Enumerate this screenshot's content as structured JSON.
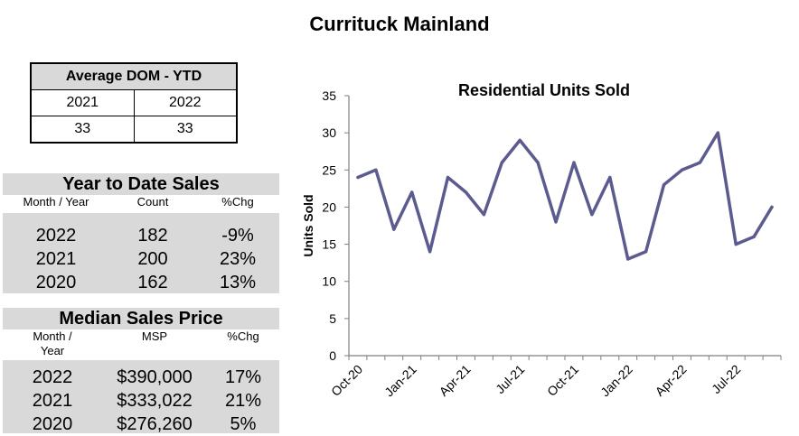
{
  "page_title": "Currituck Mainland",
  "dom_table": {
    "title": "Average DOM - YTD",
    "years": [
      "2021",
      "2022"
    ],
    "values": [
      "33",
      "33"
    ]
  },
  "ytd_sales": {
    "title": "Year to Date Sales",
    "headers": [
      "Month / Year",
      "Count",
      "%Chg"
    ],
    "rows": [
      [
        "2022",
        "182",
        "-9%"
      ],
      [
        "2021",
        "200",
        "23%"
      ],
      [
        "2020",
        "162",
        "13%"
      ]
    ]
  },
  "median_price": {
    "title": "Median Sales Price",
    "headers": [
      "Month /\nYear",
      "MSP",
      "%Chg"
    ],
    "rows": [
      [
        "2022",
        "$390,000",
        "17%"
      ],
      [
        "2021",
        "$333,022",
        "21%"
      ],
      [
        "2020",
        "$276,260",
        "5%"
      ]
    ]
  },
  "chart_data": {
    "type": "line",
    "title": "Residential Units Sold",
    "xlabel": "",
    "ylabel": "Units Sold",
    "ylim": [
      0,
      35
    ],
    "yticks": [
      0,
      5,
      10,
      15,
      20,
      25,
      30,
      35
    ],
    "x": [
      "Oct-20",
      "Nov-20",
      "Dec-20",
      "Jan-21",
      "Feb-21",
      "Mar-21",
      "Apr-21",
      "May-21",
      "Jun-21",
      "Jul-21",
      "Aug-21",
      "Sep-21",
      "Oct-21",
      "Nov-21",
      "Dec-21",
      "Jan-22",
      "Feb-22",
      "Mar-22",
      "Apr-22",
      "May-22",
      "Jun-22",
      "Jul-22",
      "Aug-22",
      "Sep-22"
    ],
    "xtick_labels": [
      "Oct-20",
      "Jan-21",
      "Apr-21",
      "Jul-21",
      "Oct-21",
      "Jan-22",
      "Apr-22",
      "Jul-22"
    ],
    "xtick_label_indices": [
      0,
      3,
      6,
      9,
      12,
      15,
      18,
      21
    ],
    "grid": false,
    "series": [
      {
        "values": [
          24,
          25,
          17,
          22,
          14,
          24,
          22,
          19,
          26,
          29,
          26,
          18,
          26,
          19,
          24,
          13,
          14,
          23,
          25,
          26,
          30,
          15,
          16,
          20
        ]
      }
    ],
    "line_color": "#5b5b8f"
  }
}
